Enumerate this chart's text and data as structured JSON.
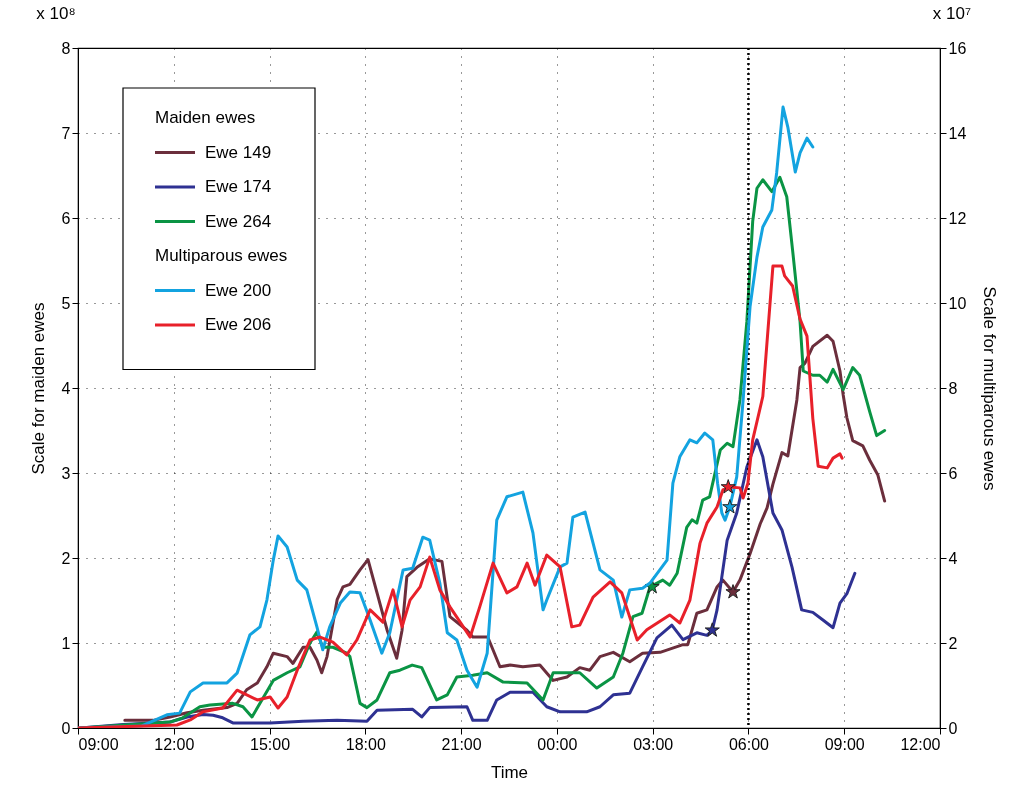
{
  "chart_data": {
    "type": "line",
    "xlabel": "Time",
    "ylabel": "Scale for maiden ewes",
    "y2label": "Scale for multiparous ewes",
    "xlim": [
      "2000-01-01T09:00",
      "2000-01-02T12:00"
    ],
    "xticks": [
      {
        "value": "2000-01-01T09:00",
        "label": "09:00"
      },
      {
        "value": "2000-01-01T12:00",
        "label": "12:00"
      },
      {
        "value": "2000-01-01T15:00",
        "label": "15:00"
      },
      {
        "value": "2000-01-01T18:00",
        "label": "18:00"
      },
      {
        "value": "2000-01-01T21:00",
        "label": "21:00"
      },
      {
        "value": "2000-01-02T00:00",
        "label": "00:00"
      },
      {
        "value": "2000-01-02T03:00",
        "label": "03:00"
      },
      {
        "value": "2000-01-02T06:00",
        "label": "06:00"
      },
      {
        "value": "2000-01-02T09:00",
        "label": "09:00"
      },
      {
        "value": "2000-01-02T12:00",
        "label": "12:00"
      }
    ],
    "ylim": [
      0,
      8
    ],
    "yticks": [
      0,
      1,
      2,
      3,
      4,
      5,
      6,
      7,
      8
    ],
    "y2lim": [
      0,
      16
    ],
    "y2ticks": [
      0,
      2,
      4,
      6,
      8,
      10,
      12,
      14,
      16
    ],
    "grid": true,
    "legend": "top left",
    "marker": "none",
    "line_style": "solid",
    "annotations": [
      "x 10⁸",
      "x 10⁷",
      "Maiden ewes",
      "Multiparous ewes"
    ],
    "ref_lines": [
      {
        "axis": "x",
        "value": "2000-01-02T06:00",
        "color": "#000000",
        "line_style": "dotted"
      }
    ],
    "series": [
      {
        "name": "Ewe 149",
        "color": "#6b2e3c",
        "axis": "y",
        "x": [
          "2000-01-01T10:28",
          "2000-01-01T11:21",
          "2000-01-01T11:53",
          "2000-01-01T12:25",
          "2000-01-01T12:55",
          "2000-01-01T13:40",
          "2000-01-01T13:59",
          "2000-01-01T14:17",
          "2000-01-01T14:37",
          "2000-01-01T14:55",
          "2000-01-01T15:07",
          "2000-01-01T15:33",
          "2000-01-01T15:44",
          "2000-01-01T16:03",
          "2000-01-01T16:16",
          "2000-01-01T16:29",
          "2000-01-01T16:38",
          "2000-01-01T16:48",
          "2000-01-01T17:07",
          "2000-01-01T17:18",
          "2000-01-01T17:31",
          "2000-01-01T17:50",
          "2000-01-01T18:05",
          "2000-01-01T18:22",
          "2000-01-01T18:41",
          "2000-01-01T18:59",
          "2000-01-01T19:09",
          "2000-01-01T19:18",
          "2000-01-01T19:37",
          "2000-01-01T20:01",
          "2000-01-01T20:24",
          "2000-01-01T20:39",
          "2000-01-01T21:11",
          "2000-01-01T21:22",
          "2000-01-01T21:50",
          "2000-01-01T22:13",
          "2000-01-01T22:32",
          "2000-01-01T22:56",
          "2000-01-01T23:28",
          "2000-01-01T23:53",
          "2000-01-02T00:19",
          "2000-01-02T00:43",
          "2000-01-02T01:02",
          "2000-01-02T01:21",
          "2000-01-02T01:46",
          "2000-01-02T02:17",
          "2000-01-02T02:41",
          "2000-01-02T03:14",
          "2000-01-02T03:57",
          "2000-01-02T04:06",
          "2000-01-02T04:23",
          "2000-01-02T04:42",
          "2000-01-02T05:01",
          "2000-01-02T05:12",
          "2000-01-02T05:31",
          "2000-01-02T05:44",
          "2000-01-02T06:03",
          "2000-01-02T06:22",
          "2000-01-02T06:35",
          "2000-01-02T06:46",
          "2000-01-02T07:03",
          "2000-01-02T07:14",
          "2000-01-02T07:31",
          "2000-01-02T07:37",
          "2000-01-02T07:46",
          "2000-01-02T08:01",
          "2000-01-02T08:28",
          "2000-01-02T08:39",
          "2000-01-02T08:52",
          "2000-01-02T08:58",
          "2000-01-02T09:05",
          "2000-01-02T09:16",
          "2000-01-02T09:35",
          "2000-01-02T09:48",
          "2000-01-02T10:03",
          "2000-01-02T10:16"
        ],
        "values": [
          0.09,
          0.09,
          0.13,
          0.18,
          0.21,
          0.24,
          0.29,
          0.45,
          0.53,
          0.72,
          0.88,
          0.84,
          0.76,
          0.95,
          0.95,
          0.8,
          0.65,
          0.84,
          1.51,
          1.66,
          1.69,
          1.86,
          1.98,
          1.59,
          1.15,
          0.82,
          1.15,
          1.78,
          1.89,
          1.99,
          1.96,
          1.31,
          1.15,
          1.07,
          1.07,
          0.72,
          0.74,
          0.72,
          0.74,
          0.56,
          0.6,
          0.71,
          0.68,
          0.84,
          0.89,
          0.78,
          0.88,
          0.89,
          0.98,
          0.98,
          1.35,
          1.39,
          1.66,
          1.74,
          1.6,
          1.74,
          2.05,
          2.4,
          2.59,
          2.87,
          3.24,
          3.2,
          3.86,
          4.24,
          4.29,
          4.49,
          4.62,
          4.55,
          4.2,
          3.92,
          3.65,
          3.38,
          3.32,
          3.15,
          2.98,
          2.67
        ]
      },
      {
        "name": "Ewe 174",
        "color": "#2e3192",
        "axis": "y",
        "x": [
          "2000-01-01T09:04",
          "2000-01-01T10:25",
          "2000-01-01T11:53",
          "2000-01-01T12:25",
          "2000-01-01T12:55",
          "2000-01-01T13:14",
          "2000-01-01T13:32",
          "2000-01-01T13:51",
          "2000-01-01T15:01",
          "2000-01-01T16:03",
          "2000-01-01T17:07",
          "2000-01-01T18:03",
          "2000-01-01T18:22",
          "2000-01-01T19:29",
          "2000-01-01T19:46",
          "2000-01-01T20:01",
          "2000-01-01T21:11",
          "2000-01-01T21:22",
          "2000-01-01T21:49",
          "2000-01-01T22:07",
          "2000-01-01T22:32",
          "2000-01-01T23:15",
          "2000-01-01T23:41",
          "2000-01-02T00:06",
          "2000-01-02T00:56",
          "2000-01-02T01:21",
          "2000-01-02T01:46",
          "2000-01-02T02:17",
          "2000-01-02T02:41",
          "2000-01-02T03:08",
          "2000-01-02T03:36",
          "2000-01-02T03:57",
          "2000-01-02T04:23",
          "2000-01-02T04:42",
          "2000-01-02T04:52",
          "2000-01-02T05:01",
          "2000-01-02T05:20",
          "2000-01-02T05:38",
          "2000-01-02T05:57",
          "2000-01-02T06:16",
          "2000-01-02T06:27",
          "2000-01-02T06:46",
          "2000-01-02T07:03",
          "2000-01-02T07:22",
          "2000-01-02T07:40",
          "2000-01-02T08:01",
          "2000-01-02T08:20",
          "2000-01-02T08:39",
          "2000-01-02T08:52",
          "2000-01-02T09:05",
          "2000-01-02T09:20"
        ],
        "values": [
          0,
          0.04,
          0.07,
          0.13,
          0.16,
          0.15,
          0.12,
          0.06,
          0.06,
          0.08,
          0.09,
          0.08,
          0.21,
          0.22,
          0.13,
          0.24,
          0.25,
          0.09,
          0.09,
          0.33,
          0.42,
          0.42,
          0.25,
          0.19,
          0.19,
          0.25,
          0.39,
          0.41,
          0.72,
          1.06,
          1.21,
          1.04,
          1.12,
          1.09,
          1.15,
          1.39,
          2.21,
          2.53,
          3.07,
          3.39,
          3.19,
          2.53,
          2.33,
          1.89,
          1.39,
          1.36,
          1.27,
          1.18,
          1.47,
          1.58,
          1.82
        ]
      },
      {
        "name": "Ewe 264",
        "color": "#0a9444",
        "axis": "y",
        "x": [
          "2000-01-01T09:04",
          "2000-01-01T11:53",
          "2000-01-01T12:17",
          "2000-01-01T12:49",
          "2000-01-01T13:08",
          "2000-01-01T13:51",
          "2000-01-01T14:10",
          "2000-01-01T14:27",
          "2000-01-01T14:42",
          "2000-01-01T15:07",
          "2000-01-01T15:33",
          "2000-01-01T15:57",
          "2000-01-01T16:16",
          "2000-01-01T16:29",
          "2000-01-01T16:40",
          "2000-01-01T16:59",
          "2000-01-01T17:25",
          "2000-01-01T17:31",
          "2000-01-01T17:50",
          "2000-01-01T18:03",
          "2000-01-01T18:22",
          "2000-01-01T18:46",
          "2000-01-01T19:05",
          "2000-01-01T19:28",
          "2000-01-01T19:46",
          "2000-01-01T20:14",
          "2000-01-01T20:34",
          "2000-01-01T20:52",
          "2000-01-01T21:22",
          "2000-01-01T21:49",
          "2000-01-01T22:19",
          "2000-01-01T23:04",
          "2000-01-01T23:34",
          "2000-01-01T23:53",
          "2000-01-02T00:43",
          "2000-01-02T01:15",
          "2000-01-02T01:46",
          "2000-01-02T02:04",
          "2000-01-02T02:23",
          "2000-01-02T02:40",
          "2000-01-02T02:55",
          "2000-01-02T03:19",
          "2000-01-02T03:32",
          "2000-01-02T03:46",
          "2000-01-02T04:04",
          "2000-01-02T04:14",
          "2000-01-02T04:23",
          "2000-01-02T04:34",
          "2000-01-02T04:47",
          "2000-01-02T05:07",
          "2000-01-02T05:20",
          "2000-01-02T05:31",
          "2000-01-02T05:44",
          "2000-01-02T05:57",
          "2000-01-02T06:08",
          "2000-01-02T06:16",
          "2000-01-02T06:27",
          "2000-01-02T06:44",
          "2000-01-02T06:59",
          "2000-01-02T07:12",
          "2000-01-02T07:23",
          "2000-01-02T07:37",
          "2000-01-02T07:43",
          "2000-01-02T08:01",
          "2000-01-02T08:14",
          "2000-01-02T08:28",
          "2000-01-02T08:39",
          "2000-01-02T08:58",
          "2000-01-02T09:16",
          "2000-01-02T09:29",
          "2000-01-02T09:48",
          "2000-01-02T10:01",
          "2000-01-02T10:16"
        ],
        "values": [
          0,
          0.07,
          0.12,
          0.25,
          0.27,
          0.29,
          0.25,
          0.13,
          0.29,
          0.56,
          0.65,
          0.72,
          1.0,
          1.13,
          0.95,
          0.95,
          0.88,
          0.84,
          0.29,
          0.24,
          0.33,
          0.65,
          0.68,
          0.74,
          0.71,
          0.33,
          0.39,
          0.6,
          0.62,
          0.65,
          0.54,
          0.53,
          0.33,
          0.65,
          0.65,
          0.47,
          0.6,
          0.88,
          1.31,
          1.35,
          1.66,
          1.74,
          1.68,
          1.82,
          2.36,
          2.45,
          2.41,
          2.68,
          2.72,
          3.27,
          3.35,
          3.31,
          3.86,
          4.78,
          5.96,
          6.35,
          6.45,
          6.31,
          6.48,
          6.25,
          5.62,
          4.78,
          4.2,
          4.15,
          4.15,
          4.07,
          4.22,
          3.98,
          4.24,
          4.15,
          3.72,
          3.44,
          3.5
        ]
      },
      {
        "name": "Ewe 200",
        "color": "#13a3e0",
        "axis": "y2",
        "x": [
          "2000-01-01T09:00",
          "2000-01-01T11:00",
          "2000-01-01T11:47",
          "2000-01-01T12:11",
          "2000-01-01T12:31",
          "2000-01-01T12:55",
          "2000-01-01T13:40",
          "2000-01-01T13:59",
          "2000-01-01T14:23",
          "2000-01-01T14:42",
          "2000-01-01T14:55",
          "2000-01-01T15:07",
          "2000-01-01T15:16",
          "2000-01-01T15:33",
          "2000-01-01T15:52",
          "2000-01-01T16:10",
          "2000-01-01T16:29",
          "2000-01-01T16:40",
          "2000-01-01T16:53",
          "2000-01-01T17:13",
          "2000-01-01T17:31",
          "2000-01-01T17:50",
          "2000-01-01T18:09",
          "2000-01-01T18:31",
          "2000-01-01T18:46",
          "2000-01-01T19:11",
          "2000-01-01T19:29",
          "2000-01-01T19:48",
          "2000-01-01T20:01",
          "2000-01-01T20:20",
          "2000-01-01T20:34",
          "2000-01-01T20:52",
          "2000-01-01T21:11",
          "2000-01-01T21:30",
          "2000-01-01T21:49",
          "2000-01-01T22:07",
          "2000-01-01T22:26",
          "2000-01-01T22:56",
          "2000-01-01T23:15",
          "2000-01-01T23:34",
          "2000-01-01T23:41",
          "2000-01-02T00:06",
          "2000-01-02T00:19",
          "2000-01-02T00:30",
          "2000-01-02T00:53",
          "2000-01-02T01:08",
          "2000-01-02T01:21",
          "2000-01-02T01:46",
          "2000-01-02T02:02",
          "2000-01-02T02:17",
          "2000-01-02T02:41",
          "2000-01-02T02:55",
          "2000-01-02T03:27",
          "2000-01-02T03:38",
          "2000-01-02T03:51",
          "2000-01-02T04:10",
          "2000-01-02T04:23",
          "2000-01-02T04:38",
          "2000-01-02T04:53",
          "2000-01-02T05:02",
          "2000-01-02T05:10",
          "2000-01-02T05:16",
          "2000-01-02T05:25",
          "2000-01-02T05:38",
          "2000-01-02T05:50",
          "2000-01-02T06:03",
          "2000-01-02T06:16",
          "2000-01-02T06:27",
          "2000-01-02T06:44",
          "2000-01-02T06:53",
          "2000-01-02T07:05",
          "2000-01-02T07:14",
          "2000-01-02T07:28",
          "2000-01-02T07:37",
          "2000-01-02T07:50",
          "2000-01-02T08:01"
        ],
        "values": [
          0,
          0.05,
          0.31,
          0.35,
          0.85,
          1.06,
          1.06,
          1.29,
          2.19,
          2.38,
          3.01,
          3.95,
          4.52,
          4.26,
          3.48,
          3.25,
          2.38,
          1.84,
          2.38,
          2.94,
          3.2,
          3.18,
          2.54,
          1.76,
          2.24,
          3.72,
          3.76,
          4.49,
          4.42,
          3.41,
          2.24,
          2.07,
          1.36,
          0.96,
          1.76,
          4.89,
          5.44,
          5.55,
          4.59,
          2.78,
          3.01,
          3.79,
          3.88,
          4.96,
          5.08,
          4.35,
          3.72,
          3.48,
          2.61,
          3.25,
          3.29,
          3.41,
          3.95,
          5.76,
          6.38,
          6.78,
          6.71,
          6.94,
          6.78,
          5.76,
          5.06,
          4.89,
          5.2,
          5.91,
          7.72,
          9.91,
          11.08,
          11.79,
          12.19,
          13.06,
          14.61,
          14.14,
          13.08,
          13.53,
          13.88,
          13.67
        ]
      },
      {
        "name": "Ewe 206",
        "color": "#e8202a",
        "axis": "y2",
        "x": [
          "2000-01-01T09:00",
          "2000-01-01T12:06",
          "2000-01-01T12:31",
          "2000-01-01T12:55",
          "2000-01-01T13:32",
          "2000-01-01T13:59",
          "2000-01-01T14:37",
          "2000-01-01T15:01",
          "2000-01-01T15:16",
          "2000-01-01T15:33",
          "2000-01-01T15:52",
          "2000-01-01T16:16",
          "2000-01-01T16:35",
          "2000-01-01T16:59",
          "2000-01-01T17:25",
          "2000-01-01T17:44",
          "2000-01-01T18:09",
          "2000-01-01T18:33",
          "2000-01-01T18:52",
          "2000-01-01T19:09",
          "2000-01-01T19:24",
          "2000-01-01T19:43",
          "2000-01-01T20:01",
          "2000-01-01T20:20",
          "2000-01-01T20:39",
          "2000-01-01T21:17",
          "2000-01-01T21:35",
          "2000-01-01T22:00",
          "2000-01-01T22:26",
          "2000-01-01T22:45",
          "2000-01-01T23:04",
          "2000-01-01T23:19",
          "2000-01-01T23:41",
          "2000-01-02T00:06",
          "2000-01-02T00:28",
          "2000-01-02T00:43",
          "2000-01-02T01:08",
          "2000-01-02T01:40",
          "2000-01-02T02:02",
          "2000-01-02T02:31",
          "2000-01-02T02:49",
          "2000-01-02T03:32",
          "2000-01-02T03:51",
          "2000-01-02T04:10",
          "2000-01-02T04:29",
          "2000-01-02T04:42",
          "2000-01-02T05:01",
          "2000-01-02T05:12",
          "2000-01-02T05:25",
          "2000-01-02T05:44",
          "2000-01-02T05:50",
          "2000-01-02T05:59",
          "2000-01-02T06:08",
          "2000-01-02T06:27",
          "2000-01-02T06:46",
          "2000-01-02T07:03",
          "2000-01-02T07:08",
          "2000-01-02T07:23",
          "2000-01-02T07:37",
          "2000-01-02T07:50",
          "2000-01-02T08:01",
          "2000-01-02T08:11",
          "2000-01-02T08:28",
          "2000-01-02T08:39",
          "2000-01-02T08:52",
          "2000-01-02T08:56"
        ],
        "values": [
          0,
          0.07,
          0.19,
          0.38,
          0.47,
          0.89,
          0.66,
          0.73,
          0.47,
          0.73,
          1.36,
          2.07,
          2.14,
          2.02,
          1.72,
          2.07,
          2.78,
          2.49,
          3.25,
          2.38,
          3.01,
          3.32,
          4.02,
          3.25,
          2.85,
          2.14,
          2.85,
          3.88,
          3.18,
          3.32,
          3.88,
          3.36,
          4.07,
          3.79,
          2.38,
          2.42,
          3.08,
          3.44,
          3.18,
          2.07,
          2.31,
          2.66,
          2.47,
          3.01,
          4.35,
          4.82,
          5.2,
          5.6,
          5.67,
          5.65,
          5.41,
          5.76,
          6.78,
          7.8,
          10.87,
          10.87,
          10.64,
          10.4,
          9.62,
          9.22,
          7.28,
          6.16,
          6.12,
          6.35,
          6.45,
          6.35
        ]
      },
      {
        "type": "scatter",
        "marker": "star",
        "color": "#6b2e3c",
        "axis": "y",
        "x": [
          "2000-01-02T05:31"
        ],
        "values": [
          1.6
        ]
      },
      {
        "type": "scatter",
        "marker": "star",
        "color": "#2e3192",
        "axis": "y",
        "x": [
          "2000-01-02T04:52"
        ],
        "values": [
          1.15
        ]
      },
      {
        "type": "scatter",
        "marker": "star",
        "color": "#0a9444",
        "axis": "y",
        "x": [
          "2000-01-02T02:59"
        ],
        "values": [
          1.66
        ]
      },
      {
        "type": "scatter",
        "marker": "star",
        "color": "#13a3e0",
        "axis": "y2",
        "x": [
          "2000-01-02T05:25"
        ],
        "values": [
          5.2
        ]
      },
      {
        "type": "scatter",
        "marker": "star",
        "color": "#e8202a",
        "axis": "y2",
        "x": [
          "2000-01-02T05:22"
        ],
        "values": [
          5.67
        ]
      }
    ]
  }
}
